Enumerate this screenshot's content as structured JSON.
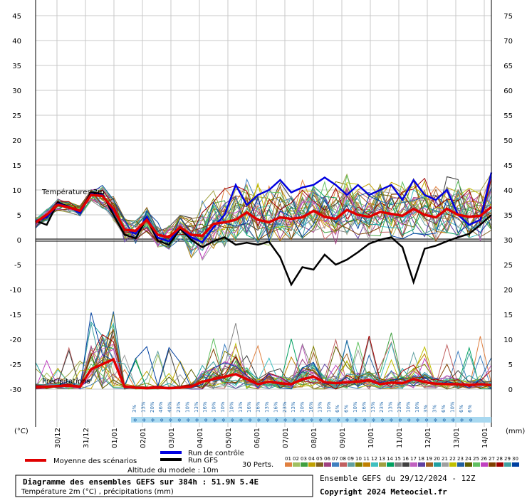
{
  "footer": {
    "title": "Diagramme des ensembles GEFS sur 384h : 51.9N 5.4E",
    "subtitle": "Température 2m (°C) , précipitations (mm)",
    "run": "Ensemble GEFS du 29/12/2024 - 12Z",
    "copyright": "Copyright 2024 Meteociel.fr",
    "altitude": "Altitude du modele : 10m"
  },
  "legend": {
    "mean": "Moyenne des scénarios",
    "control": "Run de contrôle",
    "gfs": "Run GFS",
    "perts": "30 Perts.",
    "member_numbers": [
      "01",
      "02",
      "03",
      "04",
      "05",
      "06",
      "07",
      "08",
      "09",
      "10",
      "11",
      "12",
      "13",
      "14",
      "15",
      "16",
      "17",
      "18",
      "19",
      "20",
      "21",
      "22",
      "23",
      "24",
      "25",
      "26",
      "27",
      "28",
      "29",
      "30"
    ],
    "member_colors": [
      "#e08040",
      "#a0c060",
      "#40a040",
      "#c0a000",
      "#806020",
      "#a04080",
      "#4080c0",
      "#c06060",
      "#60a0a0",
      "#808000",
      "#c08000",
      "#40c0c0",
      "#a0a040",
      "#00a060",
      "#808080",
      "#404040",
      "#c060c0",
      "#6040a0",
      "#a06020",
      "#20a0a0",
      "#a0a0a0",
      "#c0c000",
      "#2060a0",
      "#606000",
      "#60c060",
      "#c040c0",
      "#804000",
      "#a00000",
      "#40a0a0",
      "#0040a0"
    ]
  },
  "labels": {
    "temp": "Températures 2m",
    "precip": "Précipitations",
    "left_unit": "(°C)",
    "right_unit": "(mm)"
  },
  "chart_data": {
    "type": "line",
    "left_axis": {
      "label": "(°C)",
      "ylim": [
        -30,
        45
      ],
      "ticks": [
        45,
        40,
        35,
        30,
        25,
        20,
        15,
        10,
        5,
        0,
        -5,
        -10,
        -15,
        -20,
        -25,
        -30
      ]
    },
    "right_axis": {
      "label": "(mm)",
      "ylim": [
        0,
        75
      ],
      "ticks": [
        75,
        70,
        65,
        60,
        55,
        50,
        45,
        40,
        35,
        30,
        25,
        20,
        15,
        10,
        5,
        0
      ]
    },
    "x_dates": [
      "30/12",
      "31/12",
      "01/01",
      "02/01",
      "03/01",
      "04/01",
      "05/01",
      "06/01",
      "07/01",
      "08/01",
      "09/01",
      "10/01",
      "11/01",
      "12/01",
      "13/01",
      "14/01"
    ],
    "snow_pct": [
      "3%",
      "13%",
      "20%",
      "46%",
      "40%",
      "23%",
      "10%",
      "13%",
      "16%",
      "10%",
      "10%",
      "10%",
      "13%",
      "16%",
      "16%",
      "13%",
      "16%",
      "23%",
      "13%",
      "10%",
      "16%",
      "13%",
      "10%",
      "6%",
      "6%",
      "10%",
      "16%",
      "13%",
      "23%",
      "13%",
      "13%",
      "10%",
      "10%",
      "3%",
      "3%",
      "6%",
      "10%",
      "6%",
      "6%"
    ],
    "mean_temp": [
      3.5,
      5,
      7,
      6.5,
      5.8,
      9,
      8.8,
      6.2,
      2,
      1.8,
      4,
      1,
      0.5,
      2.5,
      1,
      0.8,
      3.2,
      3.5,
      4,
      5.5,
      4,
      3.5,
      4.5,
      4.2,
      4.5,
      5.8,
      4.6,
      4.2,
      6,
      5,
      4.6,
      5.6,
      5.2,
      4.8,
      6.2,
      5,
      4.5,
      6.2,
      5,
      4.6,
      4.8,
      6.6
    ],
    "control_temp": [
      3.8,
      4.5,
      7.2,
      6.6,
      5.4,
      9.2,
      9,
      5.8,
      2.2,
      1.2,
      4.6,
      0.4,
      -0.3,
      2.5,
      0.5,
      -0.5,
      2.5,
      5,
      11,
      7,
      9,
      10,
      12,
      9.5,
      10.5,
      11,
      12.5,
      11,
      9,
      11,
      9,
      10,
      11,
      8,
      12,
      9,
      8,
      10,
      5,
      3,
      4,
      13.5
    ],
    "gfs_temp": [
      3.8,
      3,
      7.5,
      6.6,
      5.8,
      9.5,
      9.2,
      5,
      1,
      0.3,
      4.3,
      -0.2,
      -1,
      2.2,
      0,
      -1.5,
      -0.3,
      0.5,
      -1,
      -0.6,
      -1,
      -0.4,
      -3.5,
      -9,
      -5.5,
      -6,
      -3,
      -5,
      -4,
      -2.5,
      -0.8,
      0,
      0.5,
      -1.5,
      -8.5,
      -1.8,
      -1.2,
      -0.3,
      0.5,
      1.2,
      3,
      5
    ],
    "mean_precip": [
      0.5,
      0.5,
      0.6,
      0.7,
      0.5,
      4,
      5,
      6,
      0.5,
      0.3,
      0.2,
      0.3,
      0.2,
      0.3,
      0.5,
      1.5,
      2,
      2.5,
      3,
      2,
      1,
      1.5,
      1.2,
      1,
      2,
      2.5,
      1.4,
      1.2,
      1.4,
      1.5,
      1.8,
      1,
      1.3,
      1.2,
      2,
      1.4,
      1.1,
      1,
      1,
      0.8,
      1,
      0.8
    ]
  }
}
